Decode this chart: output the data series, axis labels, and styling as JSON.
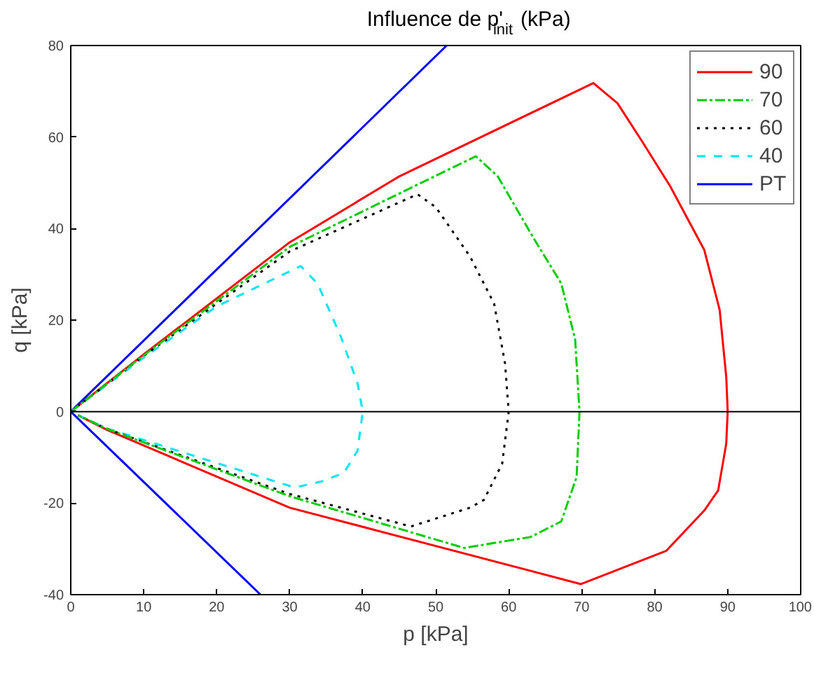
{
  "chart_data": {
    "type": "line",
    "title": "Influence de p'$_{init}$ (kPa)",
    "xlabel": "p [kPa]",
    "ylabel": "q [kPa]",
    "xlim": [
      0,
      100
    ],
    "ylim": [
      -40,
      80
    ],
    "xticks": [
      0,
      10,
      20,
      30,
      40,
      50,
      60,
      70,
      80,
      90,
      100
    ],
    "yticks": [
      -40,
      -20,
      0,
      20,
      40,
      60,
      80
    ],
    "grid": false,
    "legend": "top right",
    "marker": "none",
    "ref_lines": [
      {
        "axis": "y",
        "value": 0,
        "color": "#000000"
      }
    ],
    "series": [
      {
        "name": "90",
        "color": "#ff0000",
        "line_style": "solid",
        "x": [
          0,
          10,
          30,
          45,
          71.6,
          74.9,
          78.3,
          82.1,
          86.8,
          88.9,
          89.8,
          90,
          89.8,
          88.7,
          86.8,
          81.6,
          69.9,
          30,
          5,
          1
        ],
        "values": [
          0,
          12.5,
          37,
          51.4,
          71.8,
          67.4,
          59,
          49.3,
          35.3,
          22.2,
          7.6,
          0,
          -7,
          -17.2,
          -21.6,
          -30.4,
          -37.7,
          -21,
          -4,
          -0.8
        ]
      },
      {
        "name": "70",
        "color": "#00cc00",
        "line_style": "dashdot",
        "x": [
          0,
          10,
          30,
          55.5,
          58.5,
          63.3,
          67.2,
          69.1,
          69.7,
          69.3,
          67.2,
          63,
          53.9,
          30,
          5,
          1
        ],
        "values": [
          0,
          12.3,
          36,
          55.8,
          51.4,
          38.2,
          28,
          15.8,
          0,
          -14.3,
          -24,
          -27.4,
          -29.8,
          -18.5,
          -3.8,
          -0.8
        ]
      },
      {
        "name": "60",
        "color": "#000000",
        "line_style": "dotted",
        "x": [
          0,
          10,
          30,
          47.5,
          50,
          54.7,
          58,
          59.5,
          60,
          59.1,
          56.6,
          54.7,
          46.6,
          30,
          5,
          1
        ],
        "values": [
          0,
          12.2,
          35,
          47.5,
          44.7,
          33.9,
          23.6,
          10.5,
          0,
          -11.4,
          -19.3,
          -21,
          -25.1,
          -18,
          -3.8,
          -0.8
        ]
      },
      {
        "name": "40",
        "color": "#00e5ee",
        "line_style": "dashed",
        "x": [
          0,
          10,
          20,
          31.5,
          33.8,
          37,
          39.3,
          40,
          39.3,
          37.4,
          34.5,
          30.7,
          5,
          1
        ],
        "values": [
          0,
          11.8,
          23,
          31.8,
          28,
          16.4,
          6.1,
          0,
          -8.5,
          -13.4,
          -15.2,
          -16.6,
          -3.7,
          -0.8
        ]
      },
      {
        "name": "PT",
        "color": "#0000ff",
        "line_style": "solid",
        "x": [
          51.5,
          0,
          26
        ],
        "values": [
          80,
          0,
          -40
        ]
      }
    ]
  }
}
